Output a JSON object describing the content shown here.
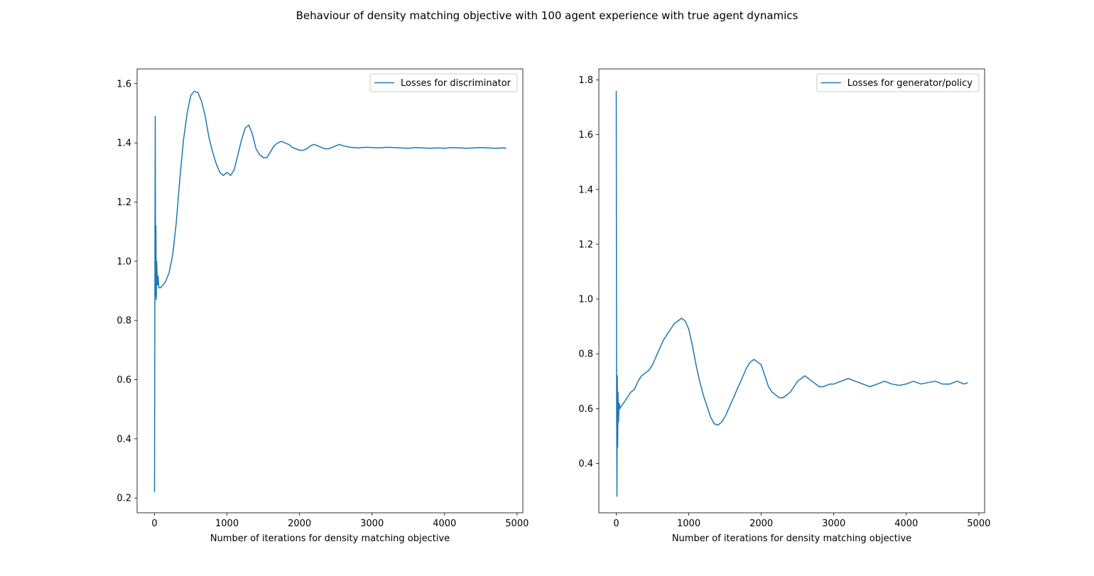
{
  "figure": {
    "suptitle": "Behaviour of density matching objective with 100 agent experience with true agent dynamics"
  },
  "chart_data": [
    {
      "type": "line",
      "title": "",
      "xlabel": "Number of iterations for density matching objective",
      "ylabel": "",
      "xlim": [
        -240,
        5080
      ],
      "ylim": [
        0.15,
        1.65
      ],
      "xticks": [
        0,
        1000,
        2000,
        3000,
        4000,
        5000
      ],
      "xtick_labels": [
        "0",
        "1000",
        "2000",
        "3000",
        "4000",
        "5000"
      ],
      "yticks": [
        0.2,
        0.4,
        0.6,
        0.8,
        1.0,
        1.2,
        1.4,
        1.6
      ],
      "ytick_labels": [
        "0.2",
        "0.4",
        "0.6",
        "0.8",
        "1.0",
        "1.2",
        "1.4",
        "1.6"
      ],
      "legend_position": "top-right",
      "color": "#1f77b4",
      "series": [
        {
          "name": "Losses for discriminator",
          "x": [
            0,
            5,
            10,
            15,
            20,
            25,
            30,
            40,
            50,
            60,
            80,
            100,
            150,
            200,
            250,
            300,
            350,
            400,
            450,
            500,
            550,
            600,
            650,
            700,
            750,
            800,
            850,
            900,
            950,
            1000,
            1050,
            1100,
            1150,
            1200,
            1250,
            1300,
            1350,
            1400,
            1450,
            1500,
            1550,
            1600,
            1650,
            1700,
            1750,
            1800,
            1850,
            1900,
            1950,
            2000,
            2050,
            2100,
            2150,
            2200,
            2250,
            2300,
            2350,
            2400,
            2450,
            2500,
            2550,
            2600,
            2700,
            2800,
            2900,
            3000,
            3100,
            3200,
            3300,
            3400,
            3500,
            3600,
            3700,
            3800,
            3900,
            4000,
            4100,
            4200,
            4300,
            4400,
            4500,
            4600,
            4700,
            4800,
            4850
          ],
          "y": [
            0.22,
            0.9,
            1.49,
            0.88,
            1.12,
            0.87,
            1.0,
            0.92,
            0.95,
            0.91,
            0.91,
            0.915,
            0.93,
            0.96,
            1.02,
            1.13,
            1.28,
            1.41,
            1.5,
            1.56,
            1.575,
            1.57,
            1.54,
            1.49,
            1.42,
            1.37,
            1.33,
            1.3,
            1.29,
            1.3,
            1.29,
            1.31,
            1.36,
            1.41,
            1.45,
            1.46,
            1.43,
            1.38,
            1.36,
            1.35,
            1.35,
            1.37,
            1.39,
            1.4,
            1.405,
            1.4,
            1.395,
            1.385,
            1.38,
            1.375,
            1.375,
            1.38,
            1.39,
            1.395,
            1.39,
            1.385,
            1.38,
            1.38,
            1.385,
            1.39,
            1.395,
            1.39,
            1.385,
            1.383,
            1.385,
            1.384,
            1.383,
            1.385,
            1.384,
            1.383,
            1.382,
            1.384,
            1.383,
            1.382,
            1.383,
            1.382,
            1.384,
            1.383,
            1.382,
            1.383,
            1.384,
            1.383,
            1.382,
            1.383,
            1.382
          ]
        }
      ]
    },
    {
      "type": "line",
      "title": "",
      "xlabel": "Number of iterations for density matching objective",
      "ylabel": "",
      "xlim": [
        -240,
        5080
      ],
      "ylim": [
        0.22,
        1.84
      ],
      "xticks": [
        0,
        1000,
        2000,
        3000,
        4000,
        5000
      ],
      "xtick_labels": [
        "0",
        "1000",
        "2000",
        "3000",
        "4000",
        "5000"
      ],
      "yticks": [
        0.4,
        0.6,
        0.8,
        1.0,
        1.2,
        1.4,
        1.6,
        1.8
      ],
      "ytick_labels": [
        "0.4",
        "0.6",
        "0.8",
        "1.0",
        "1.2",
        "1.4",
        "1.6",
        "1.8"
      ],
      "legend_position": "top-right",
      "color": "#1f77b4",
      "series": [
        {
          "name": "Losses for generator/policy",
          "x": [
            0,
            5,
            10,
            15,
            20,
            25,
            30,
            40,
            50,
            70,
            100,
            150,
            200,
            250,
            300,
            350,
            400,
            450,
            500,
            550,
            600,
            650,
            700,
            750,
            800,
            850,
            900,
            950,
            1000,
            1050,
            1100,
            1150,
            1200,
            1250,
            1300,
            1350,
            1400,
            1450,
            1500,
            1550,
            1600,
            1650,
            1700,
            1750,
            1800,
            1850,
            1900,
            1950,
            2000,
            2050,
            2100,
            2150,
            2200,
            2250,
            2300,
            2350,
            2400,
            2450,
            2500,
            2550,
            2600,
            2650,
            2700,
            2750,
            2800,
            2850,
            2900,
            2950,
            3000,
            3100,
            3200,
            3300,
            3400,
            3500,
            3600,
            3700,
            3800,
            3900,
            4000,
            4100,
            4200,
            4300,
            4400,
            4500,
            4600,
            4700,
            4800,
            4850
          ],
          "y": [
            1.76,
            0.6,
            0.28,
            0.72,
            0.46,
            0.66,
            0.55,
            0.62,
            0.6,
            0.61,
            0.62,
            0.64,
            0.66,
            0.67,
            0.7,
            0.72,
            0.73,
            0.74,
            0.76,
            0.79,
            0.82,
            0.85,
            0.87,
            0.89,
            0.91,
            0.92,
            0.93,
            0.92,
            0.89,
            0.83,
            0.76,
            0.7,
            0.65,
            0.61,
            0.57,
            0.545,
            0.54,
            0.55,
            0.57,
            0.6,
            0.63,
            0.66,
            0.69,
            0.72,
            0.75,
            0.77,
            0.78,
            0.77,
            0.76,
            0.72,
            0.68,
            0.66,
            0.65,
            0.64,
            0.64,
            0.65,
            0.66,
            0.68,
            0.7,
            0.71,
            0.72,
            0.71,
            0.7,
            0.69,
            0.68,
            0.68,
            0.685,
            0.69,
            0.69,
            0.7,
            0.71,
            0.7,
            0.69,
            0.68,
            0.69,
            0.7,
            0.69,
            0.685,
            0.69,
            0.7,
            0.69,
            0.695,
            0.7,
            0.69,
            0.69,
            0.7,
            0.69,
            0.695
          ]
        }
      ]
    }
  ]
}
